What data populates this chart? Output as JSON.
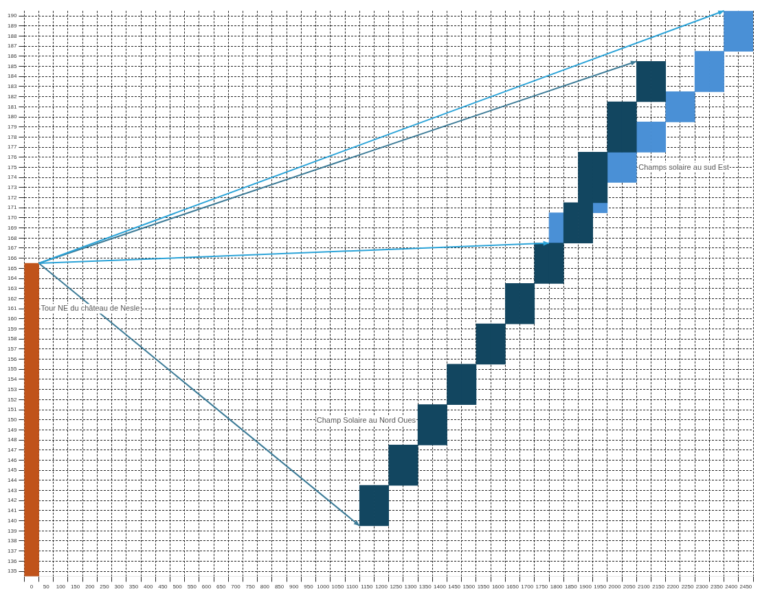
{
  "chart_data": {
    "type": "bar",
    "categories": [
      "0",
      "50",
      "100",
      "150",
      "200",
      "250",
      "300",
      "350",
      "400",
      "450",
      "500",
      "550",
      "600",
      "650",
      "700",
      "750",
      "800",
      "850",
      "900",
      "950",
      "1000",
      "1050",
      "1100",
      "1150",
      "1200",
      "1250",
      "1300",
      "1350",
      "1400",
      "1450",
      "1500",
      "1550",
      "1600",
      "1650",
      "1700",
      "1750",
      "1800",
      "1850",
      "1900",
      "1950",
      "2000",
      "2050",
      "2100",
      "2150",
      "2200",
      "2250",
      "2300",
      "2350",
      "2400",
      "2450"
    ],
    "series": [
      {
        "color": "#c0531a",
        "base": [
          134.5,
          null,
          null,
          null,
          null,
          null,
          null,
          null,
          null,
          null,
          null,
          null,
          null,
          null,
          null,
          null,
          null,
          null,
          null,
          null,
          null,
          null,
          null,
          null,
          null,
          null,
          null,
          null,
          null,
          null,
          null,
          null,
          null,
          null,
          null,
          null,
          null,
          null,
          null,
          null,
          null,
          null,
          null,
          null,
          null,
          null,
          null,
          null,
          null,
          null
        ],
        "values": [
          31,
          null,
          null,
          null,
          null,
          null,
          null,
          null,
          null,
          null,
          null,
          null,
          null,
          null,
          null,
          null,
          null,
          null,
          null,
          null,
          null,
          null,
          null,
          null,
          null,
          null,
          null,
          null,
          null,
          null,
          null,
          null,
          null,
          null,
          null,
          null,
          null,
          null,
          null,
          null,
          null,
          null,
          null,
          null,
          null,
          null,
          null,
          null,
          null,
          null
        ]
      },
      {
        "color": "#124660",
        "base": [
          null,
          null,
          null,
          null,
          null,
          null,
          null,
          null,
          null,
          null,
          null,
          null,
          null,
          null,
          null,
          null,
          null,
          null,
          null,
          null,
          null,
          null,
          null,
          139.5,
          139.5,
          143.5,
          143.5,
          147.5,
          147.5,
          151.5,
          151.5,
          155.5,
          155.5,
          159.5,
          159.5,
          163.5,
          163.5,
          167.5,
          167.5,
          null,
          176.5,
          176.5,
          181.5,
          181.5,
          null,
          null,
          null,
          null,
          null,
          null
        ],
        "values": [
          null,
          null,
          null,
          null,
          null,
          null,
          null,
          null,
          null,
          null,
          null,
          null,
          null,
          null,
          null,
          null,
          null,
          null,
          null,
          null,
          null,
          null,
          null,
          4,
          4,
          4,
          4,
          4,
          4,
          4,
          4,
          4,
          4,
          4,
          4,
          4,
          4,
          4,
          4,
          null,
          5,
          5,
          4,
          4,
          null,
          null,
          null,
          null,
          null,
          null
        ]
      },
      {
        "color": "#124660",
        "base": [
          null,
          null,
          null,
          null,
          null,
          null,
          null,
          null,
          null,
          null,
          null,
          null,
          null,
          null,
          null,
          null,
          null,
          null,
          null,
          null,
          null,
          null,
          null,
          null,
          null,
          null,
          null,
          null,
          null,
          null,
          null,
          null,
          null,
          null,
          null,
          null,
          null,
          null,
          171.5,
          171.5,
          null,
          null,
          null,
          null,
          null,
          null,
          null,
          null,
          null,
          null
        ],
        "values": [
          null,
          null,
          null,
          null,
          null,
          null,
          null,
          null,
          null,
          null,
          null,
          null,
          null,
          null,
          null,
          null,
          null,
          null,
          null,
          null,
          null,
          null,
          null,
          null,
          null,
          null,
          null,
          null,
          null,
          null,
          null,
          null,
          null,
          null,
          null,
          null,
          null,
          null,
          5,
          5,
          null,
          null,
          null,
          null,
          null,
          null,
          null,
          null,
          null,
          null
        ]
      },
      {
        "color": "#4a90d6",
        "base": [
          null,
          null,
          null,
          null,
          null,
          null,
          null,
          null,
          null,
          null,
          null,
          null,
          null,
          null,
          null,
          null,
          null,
          null,
          null,
          null,
          null,
          null,
          null,
          null,
          null,
          null,
          null,
          null,
          null,
          null,
          null,
          null,
          null,
          null,
          null,
          null,
          167.5,
          null,
          null,
          170.5,
          173.5,
          173.5,
          176.5,
          176.5,
          179.5,
          179.5,
          182.5,
          182.5,
          186.5,
          186.5
        ],
        "values": [
          null,
          null,
          null,
          null,
          null,
          null,
          null,
          null,
          null,
          null,
          null,
          null,
          null,
          null,
          null,
          null,
          null,
          null,
          null,
          null,
          null,
          null,
          null,
          null,
          null,
          null,
          null,
          null,
          null,
          null,
          null,
          null,
          null,
          null,
          null,
          null,
          3,
          null,
          null,
          1,
          3,
          3,
          3,
          3,
          3,
          3,
          4,
          4,
          4,
          4
        ]
      }
    ],
    "ylim": [
      134.5,
      190.5
    ],
    "yticks": [
      135,
      136,
      137,
      138,
      139,
      140,
      141,
      142,
      143,
      144,
      145,
      146,
      147,
      148,
      149,
      150,
      151,
      152,
      153,
      154,
      155,
      156,
      157,
      158,
      159,
      160,
      161,
      162,
      163,
      164,
      165,
      166,
      167,
      168,
      169,
      170,
      171,
      172,
      173,
      174,
      175,
      176,
      177,
      178,
      179,
      180,
      181,
      182,
      183,
      184,
      185,
      186,
      187,
      188,
      189,
      190
    ],
    "grid": true,
    "legend": false,
    "annotations": [
      "Tour NE du château de Nesle",
      "Champ Solaire au Nord Oues",
      "Champs solaire au sud Est"
    ]
  }
}
